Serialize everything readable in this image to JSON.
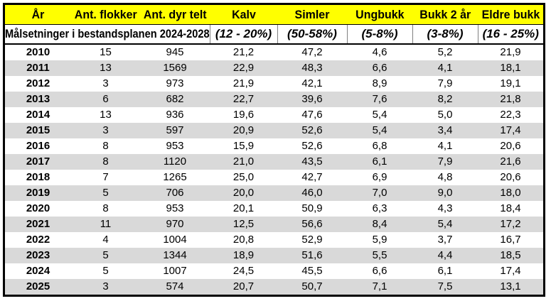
{
  "table": {
    "columns": [
      "År",
      "Ant. flokker",
      "Ant. dyr telt",
      "Kalv",
      "Simler",
      "Ungbukk",
      "Bukk 2 år",
      "Eldre bukk"
    ],
    "goals_row": {
      "label": "Målsetninger i bestandsplanen 2024-2028:",
      "targets": [
        "(12 - 20%)",
        "(50-58%)",
        "(5-8%)",
        "(3-8%)",
        "(16 - 25%)"
      ]
    },
    "rows": [
      [
        "2010",
        "15",
        "945",
        "21,2",
        "47,2",
        "4,6",
        "5,2",
        "21,9"
      ],
      [
        "2011",
        "13",
        "1569",
        "22,9",
        "48,3",
        "6,6",
        "4,1",
        "18,1"
      ],
      [
        "2012",
        "3",
        "973",
        "21,9",
        "42,1",
        "8,9",
        "7,9",
        "19,1"
      ],
      [
        "2013",
        "6",
        "682",
        "22,7",
        "39,6",
        "7,6",
        "8,2",
        "21,8"
      ],
      [
        "2014",
        "13",
        "936",
        "19,6",
        "47,6",
        "5,4",
        "5,0",
        "22,3"
      ],
      [
        "2015",
        "3",
        "597",
        "20,9",
        "52,6",
        "5,4",
        "3,4",
        "17,4"
      ],
      [
        "2016",
        "8",
        "953",
        "15,9",
        "52,6",
        "6,8",
        "4,1",
        "20,6"
      ],
      [
        "2017",
        "8",
        "1120",
        "21,0",
        "43,5",
        "6,1",
        "7,9",
        "21,6"
      ],
      [
        "2018",
        "7",
        "1265",
        "25,0",
        "42,7",
        "6,9",
        "4,8",
        "20,6"
      ],
      [
        "2019",
        "5",
        "706",
        "20,0",
        "46,0",
        "7,0",
        "9,0",
        "18,0"
      ],
      [
        "2020",
        "8",
        "953",
        "20,1",
        "50,9",
        "6,3",
        "4,3",
        "18,4"
      ],
      [
        "2021",
        "11",
        "970",
        "12,5",
        "56,6",
        "8,4",
        "5,4",
        "17,2"
      ],
      [
        "2022",
        "4",
        "1004",
        "20,8",
        "52,9",
        "5,9",
        "3,7",
        "16,7"
      ],
      [
        "2023",
        "5",
        "1344",
        "18,9",
        "51,6",
        "5,5",
        "4,4",
        "18,5"
      ],
      [
        "2024",
        "5",
        "1007",
        "24,5",
        "45,5",
        "6,6",
        "6,1",
        "17,4"
      ],
      [
        "2025",
        "3",
        "574",
        "20,7",
        "50,7",
        "7,1",
        "7,5",
        "13,1"
      ]
    ]
  },
  "colors": {
    "header_bg": "#FFFF00",
    "row_alt_bg": "#D9D9D9",
    "border": "#000000",
    "goal_divider": "#808080"
  }
}
